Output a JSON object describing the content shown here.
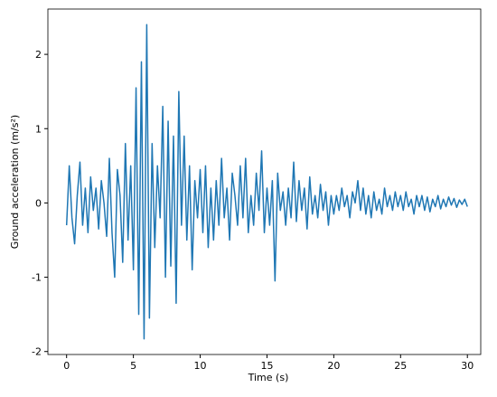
{
  "chart_data": {
    "type": "line",
    "x_label": "Time (s)",
    "y_label": "Ground acceleration (m/s²)",
    "xlim": [
      -1.4,
      31
    ],
    "ylim": [
      -2.04,
      2.61
    ],
    "xticks": [
      0,
      5,
      10,
      15,
      20,
      25,
      30
    ],
    "yticks": [
      -2,
      -1,
      0,
      1,
      2
    ],
    "x": [
      0,
      0.2,
      0.4,
      0.6,
      0.8,
      1,
      1.2,
      1.4,
      1.6,
      1.8,
      2,
      2.2,
      2.4,
      2.6,
      2.8,
      3,
      3.2,
      3.4,
      3.6,
      3.8,
      4,
      4.2,
      4.4,
      4.6,
      4.8,
      5,
      5.2,
      5.4,
      5.6,
      5.8,
      6,
      6.2,
      6.4,
      6.6,
      6.8,
      7,
      7.2,
      7.4,
      7.6,
      7.8,
      8,
      8.2,
      8.4,
      8.6,
      8.8,
      9,
      9.2,
      9.4,
      9.6,
      9.8,
      10,
      10.2,
      10.4,
      10.6,
      10.8,
      11,
      11.2,
      11.4,
      11.6,
      11.8,
      12,
      12.2,
      12.4,
      12.6,
      12.8,
      13,
      13.2,
      13.4,
      13.6,
      13.8,
      14,
      14.2,
      14.4,
      14.6,
      14.8,
      15,
      15.2,
      15.4,
      15.6,
      15.8,
      16,
      16.2,
      16.4,
      16.6,
      16.8,
      17,
      17.2,
      17.4,
      17.6,
      17.8,
      18,
      18.2,
      18.4,
      18.6,
      18.8,
      19,
      19.2,
      19.4,
      19.6,
      19.8,
      20,
      20.2,
      20.4,
      20.6,
      20.8,
      21,
      21.2,
      21.4,
      21.6,
      21.8,
      22,
      22.2,
      22.4,
      22.6,
      22.8,
      23,
      23.2,
      23.4,
      23.6,
      23.8,
      24,
      24.2,
      24.4,
      24.6,
      24.8,
      25,
      25.2,
      25.4,
      25.6,
      25.8,
      26,
      26.2,
      26.4,
      26.6,
      26.8,
      27,
      27.2,
      27.4,
      27.6,
      27.8,
      28,
      28.2,
      28.4,
      28.6,
      28.8,
      29,
      29.2,
      29.4,
      29.6,
      29.8,
      30
    ],
    "series": [
      {
        "color": "#1f77b4",
        "values": [
          -0.3,
          0.5,
          -0.2,
          -0.55,
          0.1,
          0.55,
          -0.3,
          0.2,
          -0.4,
          0.35,
          -0.1,
          0.2,
          -0.35,
          0.3,
          0,
          -0.45,
          0.6,
          -0.4,
          -1,
          0.45,
          0.1,
          -0.8,
          0.8,
          -0.5,
          0.5,
          -0.9,
          1.55,
          -1.5,
          1.9,
          -1.83,
          2.4,
          -1.55,
          0.8,
          -0.6,
          0.5,
          -0.2,
          1.3,
          -1,
          1.1,
          -0.85,
          0.9,
          -1.35,
          1.5,
          -0.3,
          0.9,
          -0.5,
          0.5,
          -0.9,
          0.3,
          -0.2,
          0.45,
          -0.4,
          0.5,
          -0.6,
          0.2,
          -0.5,
          0.3,
          -0.3,
          0.6,
          -0.2,
          0.2,
          -0.5,
          0.4,
          0.1,
          -0.3,
          0.5,
          -0.2,
          0.6,
          -0.4,
          0.1,
          -0.3,
          0.4,
          -0.1,
          0.7,
          -0.4,
          0.2,
          -0.3,
          0.3,
          -1.05,
          0.4,
          -0.1,
          0.15,
          -0.3,
          0.2,
          -0.2,
          0.55,
          -0.25,
          0.3,
          -0.1,
          0.2,
          -0.35,
          0.35,
          -0.15,
          0.1,
          -0.2,
          0.25,
          -0.1,
          0.15,
          -0.3,
          0.1,
          -0.15,
          0.1,
          -0.1,
          0.2,
          -0.05,
          0.1,
          -0.2,
          0.15,
          0,
          0.3,
          -0.1,
          0.2,
          -0.15,
          0.1,
          -0.2,
          0.15,
          -0.1,
          0.05,
          -0.15,
          0.2,
          -0.05,
          0.1,
          -0.1,
          0.15,
          -0.05,
          0.1,
          -0.1,
          0.15,
          -0.05,
          0.05,
          -0.15,
          0.1,
          -0.05,
          0.1,
          -0.1,
          0.08,
          -0.12,
          0.05,
          -0.05,
          0.1,
          -0.08,
          0.05,
          -0.05,
          0.08,
          -0.03,
          0.06,
          -0.06,
          0.04,
          -0.02,
          0.05,
          -0.05
        ]
      }
    ]
  }
}
